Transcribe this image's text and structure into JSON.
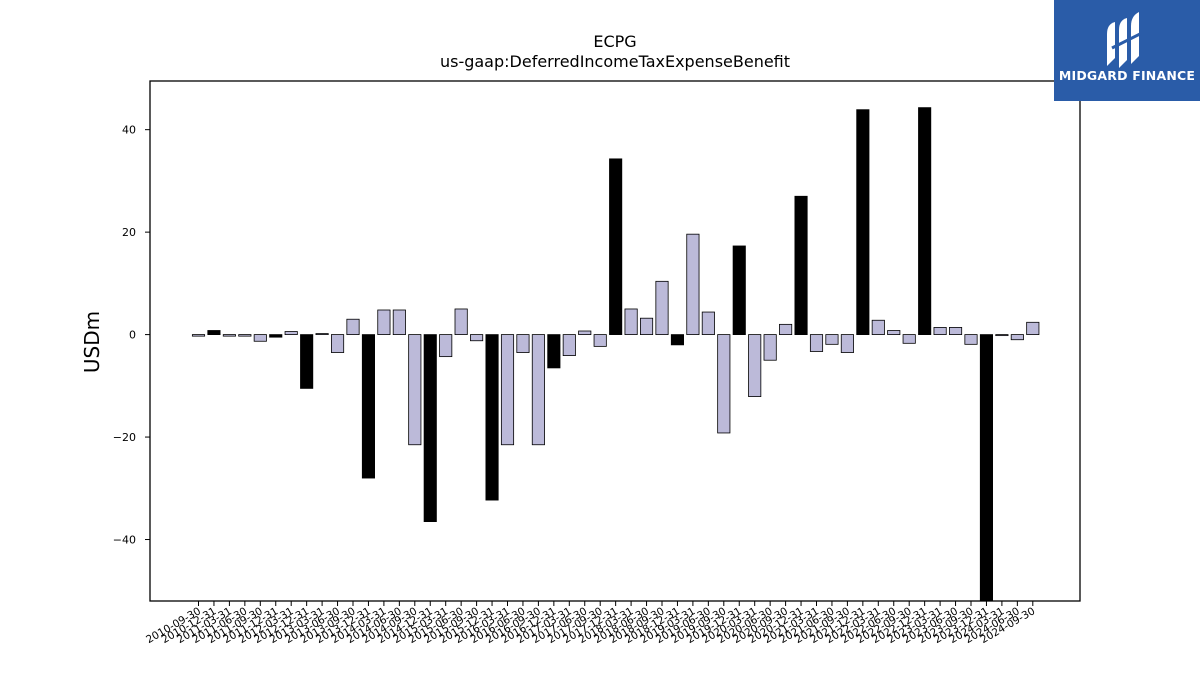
{
  "logo": {
    "text": "MIDGARD FINANCE",
    "color": "#2a5ca8"
  },
  "chart_data": {
    "type": "bar",
    "title": "ECPG",
    "subtitle": "us-gaap:DeferredIncomeTaxExpenseBenefit",
    "ylabel": "USDm",
    "xlabel": "",
    "ylim": [
      -52,
      49.5
    ],
    "yticks": [
      -40,
      -20,
      0,
      20,
      40
    ],
    "grid": false,
    "colors": {
      "annual": "#000000",
      "quarterly": "#bcbad9",
      "edge": "#000000"
    },
    "categories": [
      "2010-09-30",
      "2010-12-31",
      "2011-03-31",
      "2011-06-30",
      "2011-09-30",
      "2011-12-31",
      "2012-03-31",
      "2012-12-31",
      "2013-03-31",
      "2013-06-30",
      "2013-09-30",
      "2013-12-31",
      "2014-03-31",
      "2014-06-30",
      "2014-09-30",
      "2014-12-31",
      "2015-03-31",
      "2015-06-30",
      "2015-09-30",
      "2015-12-31",
      "2016-03-31",
      "2016-06-30",
      "2016-09-30",
      "2016-12-31",
      "2017-03-31",
      "2017-06-30",
      "2017-09-30",
      "2017-12-31",
      "2018-03-31",
      "2018-06-30",
      "2018-09-30",
      "2018-12-31",
      "2019-03-31",
      "2019-06-30",
      "2019-09-30",
      "2019-12-31",
      "2020-03-31",
      "2020-06-30",
      "2020-09-30",
      "2020-12-31",
      "2021-03-31",
      "2021-06-30",
      "2021-09-30",
      "2021-12-31",
      "2022-03-31",
      "2022-06-30",
      "2022-09-30",
      "2022-12-31",
      "2023-03-31",
      "2023-06-30",
      "2023-09-30",
      "2023-12-31",
      "2024-03-31",
      "2024-06-30",
      "2024-09-30"
    ],
    "values": [
      -0.3,
      0.8,
      -0.3,
      -0.3,
      -1.3,
      -0.5,
      0.6,
      -10.5,
      0.2,
      -3.5,
      3.0,
      -28.0,
      4.8,
      4.8,
      -21.5,
      -36.5,
      -4.3,
      5.0,
      -1.2,
      -32.3,
      -21.5,
      -3.5,
      -21.5,
      -6.5,
      -4.1,
      0.7,
      -2.3,
      34.3,
      5.0,
      3.2,
      10.4,
      -2.0,
      19.6,
      4.4,
      -19.2,
      17.3,
      -12.1,
      -5.0,
      2.0,
      27.0,
      -3.3,
      -1.9,
      -3.5,
      43.9,
      2.8,
      0.8,
      -1.7,
      44.3,
      1.4,
      1.4,
      -1.9,
      -52.0,
      -0.2,
      -1.0,
      2.4
    ],
    "annual": [
      false,
      true,
      false,
      false,
      false,
      true,
      false,
      true,
      false,
      false,
      false,
      true,
      false,
      false,
      false,
      true,
      false,
      false,
      false,
      true,
      false,
      false,
      false,
      true,
      false,
      false,
      false,
      true,
      false,
      false,
      false,
      true,
      false,
      false,
      false,
      true,
      false,
      false,
      false,
      true,
      false,
      false,
      false,
      true,
      false,
      false,
      false,
      true,
      false,
      false,
      false,
      true,
      false,
      false,
      false
    ]
  }
}
